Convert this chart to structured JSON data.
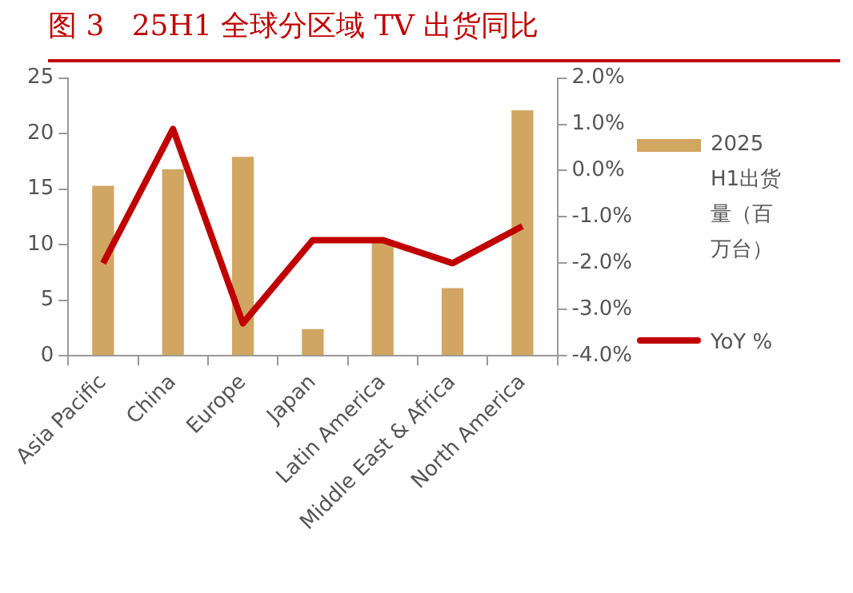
{
  "chart_data": {
    "type": "bar",
    "title": "图 3   25H1 全球分区域 TV 出货同比",
    "categories": [
      "Asia Pacific",
      "China",
      "Europe",
      "Japan",
      "Latin America",
      "Middle East & Africa",
      "North America"
    ],
    "series": [
      {
        "name": "2025 H1出货量（百万台）",
        "color": "#d0a662",
        "values": [
          15.3,
          16.8,
          17.9,
          2.4,
          10.4,
          6.1,
          22.1
        ]
      },
      {
        "name": "YoY %",
        "type": "line",
        "axis": "y2",
        "color": "#c00000",
        "values": [
          -2.0,
          0.9,
          -3.3,
          -1.5,
          -1.5,
          -2.0,
          -1.2
        ]
      }
    ],
    "ylim": [
      0,
      25
    ],
    "yticks": [
      0,
      5,
      10,
      15,
      20,
      25
    ],
    "y2lim": [
      -4,
      2
    ],
    "y2ticks": [
      {
        "value": 2,
        "label": "2.0%"
      },
      {
        "value": 1,
        "label": "1.0%"
      },
      {
        "value": 0,
        "label": "0.0%"
      },
      {
        "value": -1,
        "label": "-1.0%"
      },
      {
        "value": -2,
        "label": "-2.0%"
      },
      {
        "value": -3,
        "label": "-3.0%"
      },
      {
        "value": -4,
        "label": "-4.0%"
      }
    ],
    "grid": false,
    "legend": "right",
    "marker": "none"
  }
}
